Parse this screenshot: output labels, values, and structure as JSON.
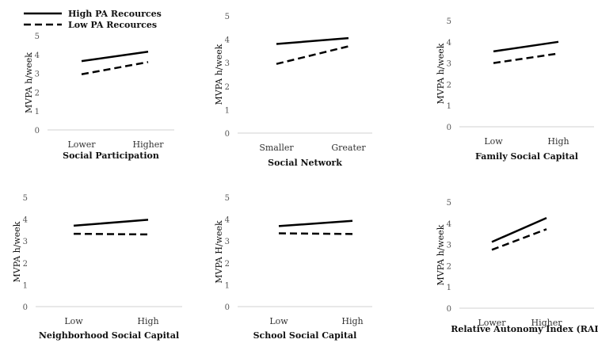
{
  "legend": {
    "high": "High PA Recources",
    "low": "Low PA Recources"
  },
  "chart_data": [
    {
      "type": "line",
      "title": "",
      "xlabel": "Social Participation",
      "ylabel": "MVPA h/week",
      "categories": [
        "Lower",
        "Higher"
      ],
      "ylim": [
        0,
        5
      ],
      "yticks": [
        "0",
        "1",
        "2",
        "3",
        "4",
        "5"
      ],
      "series": [
        {
          "name": "High PA Recources",
          "values": [
            3.65,
            4.15
          ]
        },
        {
          "name": "Low PA Recources",
          "values": [
            2.95,
            3.6
          ]
        }
      ]
    },
    {
      "type": "line",
      "title": "",
      "xlabel": "Social Network",
      "ylabel": "MVPA h/week",
      "categories": [
        "Smaller",
        "Greater"
      ],
      "ylim": [
        0,
        5
      ],
      "yticks": [
        "0",
        "1",
        "2",
        "3",
        "4",
        "5"
      ],
      "series": [
        {
          "name": "High PA Recources",
          "values": [
            3.8,
            4.05
          ]
        },
        {
          "name": "Low PA Recources",
          "values": [
            2.95,
            3.7
          ]
        }
      ]
    },
    {
      "type": "line",
      "title": "",
      "xlabel": "Family Social Capital",
      "ylabel": "MVPA h/week",
      "categories": [
        "Low",
        "High"
      ],
      "ylim": [
        0,
        5
      ],
      "yticks": [
        "0",
        "1",
        "2",
        "3",
        "4",
        "5"
      ],
      "series": [
        {
          "name": "High PA Recources",
          "values": [
            3.55,
            4.0
          ]
        },
        {
          "name": "Low PA Recources",
          "values": [
            3.0,
            3.45
          ]
        }
      ]
    },
    {
      "type": "line",
      "title": "",
      "xlabel": "Neighborhood Social Capital",
      "ylabel": "MVPA h/week",
      "categories": [
        "Low",
        "High"
      ],
      "ylim": [
        0,
        5
      ],
      "yticks": [
        "0",
        "1",
        "2",
        "3",
        "4",
        "5"
      ],
      "series": [
        {
          "name": "High PA Recources",
          "values": [
            3.7,
            3.97
          ]
        },
        {
          "name": "Low PA Recources",
          "values": [
            3.33,
            3.3
          ]
        }
      ]
    },
    {
      "type": "line",
      "title": "",
      "xlabel": "School Social Capital",
      "ylabel": "MVPA H/week",
      "categories": [
        "Low",
        "High"
      ],
      "ylim": [
        0,
        5
      ],
      "yticks": [
        "0",
        "1",
        "2",
        "3",
        "4",
        "5"
      ],
      "series": [
        {
          "name": "High PA Recources",
          "values": [
            3.68,
            3.92
          ]
        },
        {
          "name": "Low PA Recources",
          "values": [
            3.35,
            3.32
          ]
        }
      ]
    },
    {
      "type": "line",
      "title": "",
      "xlabel": "Relative Autonomy Index (RAI)",
      "ylabel": "MVPA h/week",
      "categories": [
        "Lower",
        "Higher"
      ],
      "ylim": [
        0,
        5
      ],
      "yticks": [
        "0",
        "1",
        "2",
        "3",
        "4",
        "5"
      ],
      "series": [
        {
          "name": "High PA Recources",
          "values": [
            3.12,
            4.25
          ]
        },
        {
          "name": "Low PA Recources",
          "values": [
            2.75,
            3.72
          ]
        }
      ]
    }
  ]
}
